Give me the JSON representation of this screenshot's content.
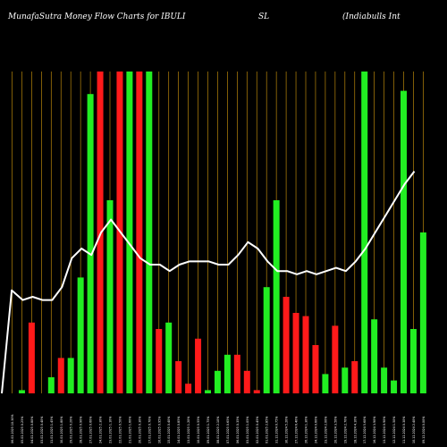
{
  "header": {
    "part1": "MunafaSutra  Money  Flow  Charts for IBULI",
    "part2": "SL",
    "part3": "(Indiabulls Int"
  },
  "colors": {
    "background": "#000000",
    "grid": "#b8860b",
    "up": "#22ee22",
    "down": "#ff1a1a",
    "line": "#ffffff"
  },
  "chart_data": {
    "type": "bar",
    "title": "MunafaSutra Money Flow Charts for IBULISL (Indiabulls Int",
    "xlabel": "",
    "ylabel": "",
    "ylim": [
      0,
      100
    ],
    "grid": true,
    "categories": [
      "06 Fri Feb 2025",
      "05 Wed Feb 2025",
      "04 Tue Feb 2025",
      "03 Mon Feb 2025",
      "31 Fri Jan 2025",
      "30 Thu Jan 2025",
      "29 Wed Jan 2025",
      "28 Tue Jan 2025",
      "27 Mon Jan 2025",
      "24 Fri Jan 2025",
      "23 Thu Jan 2025",
      "22 Wed Jan 2025",
      "21 Tue Jan 2025",
      "20 Mon Jan 2025",
      "17 Fri Jan 2025",
      "16 Thu Jan 2025",
      "15 Wed Jan 2025",
      "14 Tue Jan 2025",
      "13 Mon Jan 2025",
      "10 Fri Jan 2025",
      "09 Thu Jan 2025",
      "08 Wed Jan 2025",
      "07 Tue Jan 2025",
      "06 Mon Jan 2025",
      "03 Fri Jan 2025",
      "02 Thu Jan 2025",
      "01 Wed Jan 2025",
      "31 Tue Dec 2024",
      "30 Mon Dec 2024",
      "27 Fri Dec 2024",
      "26 Thu Dec 2024",
      "24 Tue Dec 2024",
      "23 Mon Dec 2024",
      "20 Fri Dec 2024",
      "19 Thu Dec 2024",
      "18 Wed Dec 2024",
      "17 Tue Dec 2024",
      "16 Mon Dec 2024",
      "13 Fri Dec 2024",
      "12 Thu Dec 2024",
      "11 Wed Dec 2024",
      "10 Tue Dec 2024",
      "09 Mon Dec 2024"
    ],
    "tick_labels": [
      "06.02.2025 10.30%",
      "05.02.2025 0.25%",
      "04.02.2025 0.80%",
      "03.02.2025 0.40%",
      "31.01.2025 1.45%",
      "30.01.2025 1.80%",
      "29.01.2025 0.20%",
      "28.01.2025 0.90%",
      "27.01.2025 0.60%",
      "24.01.2025 2.30%",
      "23.01.2025 1.10%",
      "22.01.2025 0.50%",
      "21.01.2025 1.60%",
      "20.01.2025 0.30%",
      "17.01.2025 0.70%",
      "16.01.2025 0.95%",
      "15.01.2025 0.40%",
      "14.01.2025 0.85%",
      "13.01.2025 1.20%",
      "10.01.2025 0.55%",
      "09.01.2025 1.75%",
      "08.01.2025 2.10%",
      "07.01.2025 0.65%",
      "06.01.2025 0.35%",
      "03.01.2025 1.05%",
      "02.01.2025 0.45%",
      "01.01.2025 2.85%",
      "31.12.2024 0.75%",
      "30.12.2024 5.20%",
      "27.12.2024 6.40%",
      "26.12.2024 1.30%",
      "24.12.2024 0.60%",
      "23.12.2024 2.00%",
      "20.12.2024 3.50%",
      "19.12.2024 2.70%",
      "18.12.2024 4.10%",
      "17.12.2024 5.60%",
      "16.12.2024 3.90%",
      "13.12.2024 0.90%",
      "12.12.2024 1.50%",
      "11.12.2024 0.30%",
      "10.12.2024 2.40%",
      "09.12.2024 0.00%"
    ],
    "series": [
      {
        "values": [
          0,
          1,
          22,
          0,
          5,
          11,
          11,
          36,
          93,
          100,
          60,
          100,
          100,
          100,
          100,
          20,
          22,
          10,
          3,
          17,
          1,
          7,
          12,
          12,
          7,
          1,
          33,
          60,
          30,
          25,
          24,
          15,
          6,
          21,
          8,
          10,
          100,
          23,
          8,
          4,
          94,
          20,
          50
        ],
        "colors": [
          "up",
          "up",
          "down",
          "up",
          "up",
          "down",
          "up",
          "up",
          "up",
          "down",
          "up",
          "down",
          "up",
          "down",
          "up",
          "down",
          "up",
          "down",
          "down",
          "down",
          "up",
          "up",
          "up",
          "down",
          "down",
          "down",
          "up",
          "up",
          "down",
          "down",
          "down",
          "down",
          "up",
          "down",
          "up",
          "down",
          "up",
          "up",
          "up",
          "up",
          "up",
          "up",
          "up"
        ]
      },
      {
        "type": "line",
        "values": [
          0,
          32,
          29,
          30,
          29,
          29,
          33,
          42,
          45,
          43,
          50,
          54,
          50,
          46,
          42,
          40,
          40,
          38,
          40,
          41,
          41,
          41,
          40,
          40,
          43,
          47,
          45,
          41,
          38,
          38,
          37,
          38,
          37,
          38,
          39,
          38,
          41,
          45,
          50,
          55,
          60,
          65,
          69
        ]
      }
    ]
  }
}
